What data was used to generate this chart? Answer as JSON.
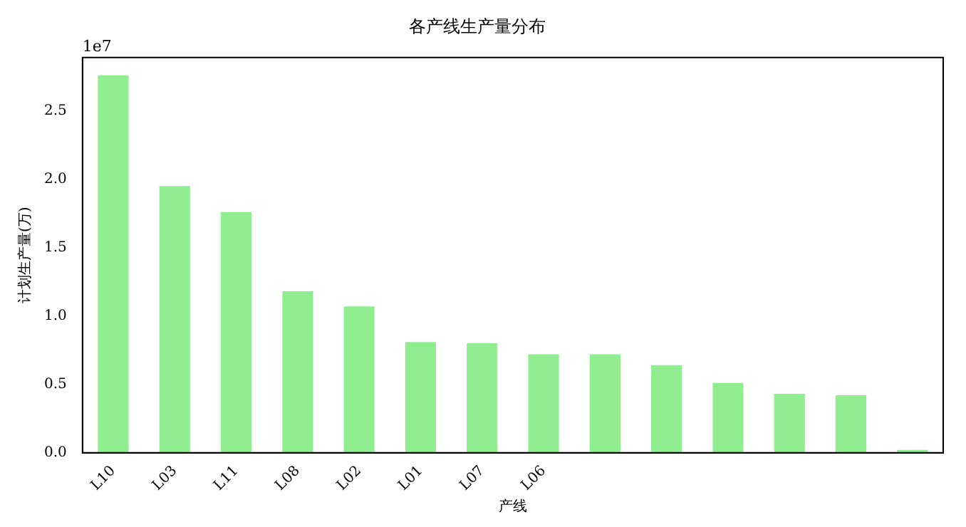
{
  "chart_data": {
    "type": "bar",
    "title": "各产线生产量分布",
    "xlabel": "产线",
    "ylabel": "计划生产量(万)",
    "categories": [
      "L10",
      "L03",
      "L11",
      "L08",
      "L02",
      "L01",
      "L07",
      "L06",
      null,
      null,
      null,
      null,
      null,
      null
    ],
    "values": [
      2.76,
      1.95,
      1.76,
      1.18,
      1.07,
      0.81,
      0.8,
      0.72,
      0.72,
      0.64,
      0.51,
      0.43,
      0.42,
      0.02
    ],
    "color": "#90ee90",
    "ylim": [
      0,
      2.89
    ],
    "yticks": [
      {
        "value": 0,
        "label": "0.0"
      },
      0.5,
      {
        "value": 1,
        "label": "1.0"
      },
      1.5,
      {
        "value": 2,
        "label": "2.0"
      },
      2.5
    ],
    "annotations": [
      "1e7"
    ],
    "grid": false,
    "legend": false
  }
}
